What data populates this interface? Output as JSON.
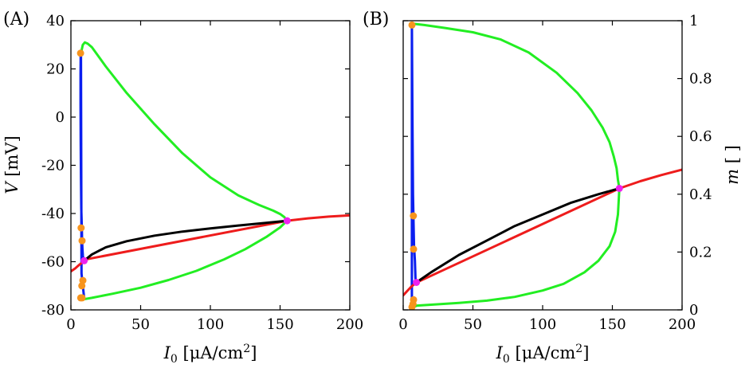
{
  "chart_data": [
    {
      "type": "line",
      "panel_label": "(A)",
      "xlabel": "I",
      "xlabel_sub": "0",
      "xlabel_units": " [μA/cm",
      "xlabel_units_sup": "2",
      "xlabel_units_end": "]",
      "ylabel": "V",
      "ylabel_units": " [mV]",
      "xlim": [
        0,
        200
      ],
      "ylim": [
        -80,
        40
      ],
      "xticks": [
        0,
        50,
        100,
        150,
        200
      ],
      "xtick_labels": [
        "0",
        "50",
        "100",
        "150",
        "200"
      ],
      "yticks": [
        40,
        20,
        0,
        -20,
        -40,
        -60,
        -80
      ],
      "ytick_labels": [
        "40",
        "20",
        "0",
        "-20",
        "-40",
        "-60",
        "-80"
      ],
      "ytick_side": "left",
      "series": [
        {
          "name": "blue",
          "color": "#0a1ef0",
          "x": [
            9.0,
            8.6,
            8.3,
            8.0,
            7.8,
            7.4,
            7.2,
            7.0,
            6.9,
            6.9,
            7.0,
            7.2,
            7.6,
            8.2,
            8.9,
            9.5
          ],
          "y": [
            -59.5,
            -57.5,
            -55.0,
            -51.0,
            -46.0,
            -38.0,
            -25.0,
            -10.0,
            5.0,
            18.0,
            26.5,
            27.5,
            -65.0,
            -68.0,
            -72.0,
            -75.0
          ]
        },
        {
          "name": "red",
          "color": "#ee1c1c",
          "x": [
            0,
            3,
            6,
            9.5,
            12,
            155,
            170,
            185,
            200
          ],
          "y": [
            -64.0,
            -62.8,
            -61.3,
            -59.7,
            -58.9,
            -43.0,
            -42.0,
            -41.3,
            -40.8
          ]
        },
        {
          "name": "black",
          "color": "#000000",
          "x": [
            9.5,
            15,
            25,
            40,
            60,
            80,
            100,
            120,
            140,
            155
          ],
          "y": [
            -59.6,
            -57.0,
            -54.0,
            -51.5,
            -49.2,
            -47.5,
            -46.2,
            -45.0,
            -43.9,
            -43.0
          ]
        },
        {
          "name": "green-upper",
          "color": "#22ee22",
          "x": [
            7.0,
            8.5,
            10.0,
            12.0,
            15,
            25,
            40,
            60,
            80,
            100,
            120,
            135,
            145,
            150,
            153,
            155
          ],
          "y": [
            26.0,
            30.0,
            31.0,
            30.5,
            29.0,
            21.0,
            10.0,
            -3.0,
            -15.0,
            -25.0,
            -32.5,
            -36.5,
            -38.8,
            -40.2,
            -41.5,
            -43.0
          ]
        },
        {
          "name": "green-lower",
          "color": "#22ee22",
          "x": [
            6.9,
            9.0,
            15,
            30,
            50,
            70,
            90,
            110,
            125,
            140,
            150,
            155
          ],
          "y": [
            -74.8,
            -75.6,
            -75.0,
            -73.3,
            -70.8,
            -67.6,
            -63.8,
            -59.0,
            -54.8,
            -49.8,
            -45.8,
            -43.0
          ]
        }
      ],
      "markers": [
        {
          "name": "orange-point",
          "color": "#f7941d",
          "x": [
            6.9,
            7.3,
            8.0,
            8.6,
            7.8,
            8.0,
            7.0
          ],
          "y": [
            26.5,
            -46.0,
            -51.3,
            -67.8,
            -70.0,
            -75.0,
            -75.0
          ]
        },
        {
          "name": "magenta-point",
          "color": "#ee22ee",
          "x": [
            9.5,
            155
          ],
          "y": [
            -59.6,
            -43.0
          ]
        }
      ]
    },
    {
      "type": "line",
      "panel_label": "(B)",
      "xlabel": "I",
      "xlabel_sub": "0",
      "xlabel_units": " [μA/cm",
      "xlabel_units_sup": "2",
      "xlabel_units_end": "]",
      "ylabel": "m",
      "ylabel_units": " [ ]",
      "xlim": [
        0,
        200
      ],
      "ylim": [
        0,
        1
      ],
      "xticks": [
        0,
        50,
        100,
        150,
        200
      ],
      "xtick_labels": [
        "0",
        "50",
        "100",
        "150",
        "200"
      ],
      "yticks": [
        1,
        0.8,
        0.6,
        0.4,
        0.2,
        0
      ],
      "ytick_labels": [
        "1",
        "0.8",
        "0.6",
        "0.4",
        "0.2",
        "0"
      ],
      "ytick_side": "right",
      "series": [
        {
          "name": "blue",
          "color": "#0a1ef0",
          "x": [
            9.2,
            8.8,
            8.4,
            7.8,
            7.4,
            7.0,
            6.8,
            6.6,
            6.4,
            6.3,
            6.2,
            6.2,
            6.3
          ],
          "y": [
            0.095,
            0.11,
            0.17,
            0.22,
            0.3,
            0.4,
            0.55,
            0.7,
            0.85,
            0.95,
            0.985,
            0.03,
            0.01
          ]
        },
        {
          "name": "red",
          "color": "#ee1c1c",
          "x": [
            0,
            3,
            6,
            9.5,
            12,
            155,
            170,
            185,
            200
          ],
          "y": [
            0.05,
            0.066,
            0.081,
            0.095,
            0.1,
            0.42,
            0.445,
            0.466,
            0.485
          ]
        },
        {
          "name": "black",
          "color": "#000000",
          "x": [
            9.5,
            20,
            40,
            60,
            80,
            100,
            120,
            140,
            155
          ],
          "y": [
            0.095,
            0.13,
            0.19,
            0.24,
            0.29,
            0.33,
            0.37,
            0.4,
            0.42
          ]
        },
        {
          "name": "green-upper",
          "color": "#22ee22",
          "x": [
            6.3,
            15,
            30,
            50,
            70,
            90,
            110,
            125,
            135,
            143,
            148,
            151,
            153,
            154,
            155
          ],
          "y": [
            0.99,
            0.985,
            0.975,
            0.96,
            0.935,
            0.89,
            0.82,
            0.75,
            0.69,
            0.63,
            0.58,
            0.53,
            0.49,
            0.45,
            0.42
          ]
        },
        {
          "name": "green-lower",
          "color": "#22ee22",
          "x": [
            7.0,
            10,
            20,
            40,
            60,
            80,
            100,
            115,
            130,
            140,
            148,
            152,
            154,
            155
          ],
          "y": [
            0.01,
            0.015,
            0.018,
            0.024,
            0.032,
            0.045,
            0.067,
            0.09,
            0.13,
            0.17,
            0.22,
            0.27,
            0.33,
            0.42
          ]
        }
      ],
      "markers": [
        {
          "name": "orange-point",
          "color": "#f7941d",
          "x": [
            6.3,
            7.3,
            7.4,
            7.4,
            7.0,
            6.3
          ],
          "y": [
            0.985,
            0.325,
            0.21,
            0.035,
            0.02,
            0.01
          ]
        },
        {
          "name": "magenta-point",
          "color": "#ee22ee",
          "x": [
            9.5,
            155
          ],
          "y": [
            0.095,
            0.42
          ]
        }
      ]
    }
  ]
}
